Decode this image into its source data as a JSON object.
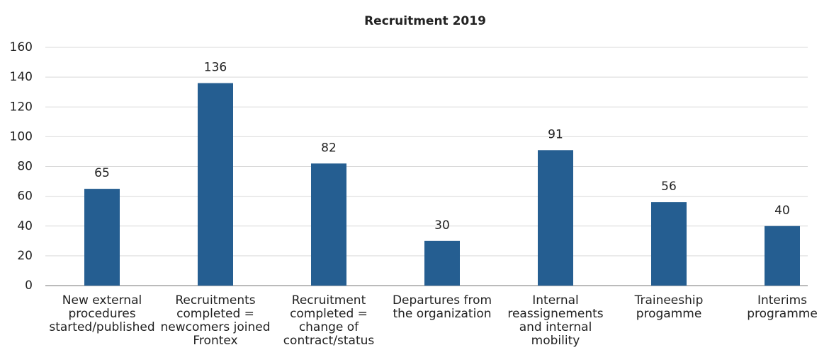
{
  "chart_data": {
    "type": "bar",
    "title": "Recruitment 2019",
    "categories": [
      "New external procedures started/published",
      "Recruitments completed = newcomers joined Frontex",
      "Recruitment completed = change of contract/status",
      "Departures from the organization",
      "Internal reassignements and internal mobility",
      "Traineeship progamme",
      "Interims programme"
    ],
    "values": [
      65,
      136,
      82,
      30,
      91,
      56,
      40
    ],
    "color": "#255e91",
    "ylim": [
      0,
      160
    ],
    "yticks": [
      0,
      20,
      40,
      60,
      80,
      100,
      120,
      140,
      160
    ],
    "grid": true
  }
}
